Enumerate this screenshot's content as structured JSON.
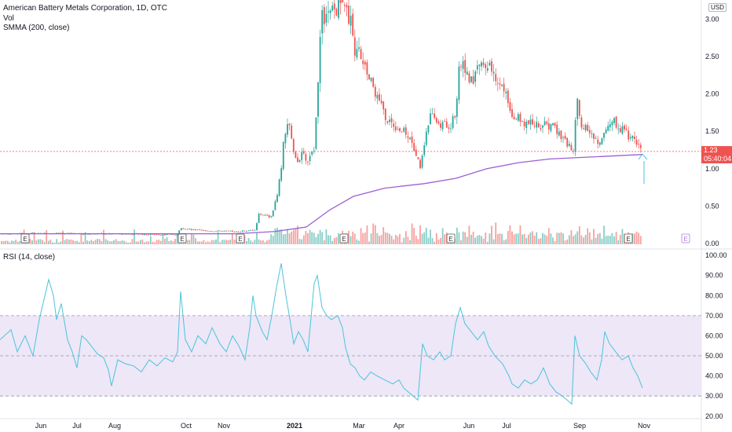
{
  "header": {
    "symbol_line": "American Battery Metals Corporation, 1D, OTC",
    "volume_label": "Vol",
    "smma_label": "SMMA (200, close)",
    "rsi_label": "RSI (14, close)"
  },
  "price_scale": {
    "currency": "USD"
  },
  "last_price": {
    "value": "1.23",
    "countdown": "05:40:04"
  },
  "colors": {
    "up": "#26a69a",
    "down": "#ef5350",
    "smma": "#9c5fd4",
    "rsi": "#4dc3d9",
    "rsi_band": "#ede7f8",
    "earnings_future": "#b47cd6"
  },
  "earnings_marker": "E",
  "chart_data": [
    {
      "type": "candlestick",
      "name": "price",
      "x_ticks": [
        "Jun",
        "Jul",
        "Aug",
        "Oct",
        "Nov",
        "2021",
        "Mar",
        "Apr",
        "Jun",
        "Jul",
        "Sep",
        "Nov"
      ],
      "y_ticks": [
        "3.00",
        "2.50",
        "2.00",
        "1.50",
        "1.00",
        "0.50",
        "0.00"
      ],
      "ylim": [
        0,
        3.15
      ],
      "close_path": [
        [
          0,
          0.13
        ],
        [
          60,
          0.14
        ],
        [
          100,
          0.13
        ],
        [
          150,
          0.13
        ],
        [
          200,
          0.12
        ],
        [
          225,
          0.12
        ],
        [
          230,
          0.2
        ],
        [
          260,
          0.17
        ],
        [
          300,
          0.16
        ],
        [
          325,
          0.18
        ],
        [
          330,
          0.4
        ],
        [
          345,
          0.35
        ],
        [
          352,
          0.6
        ],
        [
          358,
          1.0
        ],
        [
          362,
          1.5
        ],
        [
          368,
          1.6
        ],
        [
          372,
          1.3
        ],
        [
          378,
          1.1
        ],
        [
          384,
          1.2
        ],
        [
          392,
          1.1
        ],
        [
          400,
          1.3
        ],
        [
          404,
          2.0
        ],
        [
          410,
          3.1
        ],
        [
          415,
          3.0
        ],
        [
          430,
          3.15
        ],
        [
          442,
          3.1
        ],
        [
          448,
          2.9
        ],
        [
          452,
          2.6
        ],
        [
          457,
          2.7
        ],
        [
          462,
          2.4
        ],
        [
          470,
          2.2
        ],
        [
          480,
          2.0
        ],
        [
          490,
          1.7
        ],
        [
          500,
          1.6
        ],
        [
          512,
          1.5
        ],
        [
          522,
          1.45
        ],
        [
          530,
          1.2
        ],
        [
          535,
          1.0
        ],
        [
          540,
          1.35
        ],
        [
          548,
          1.7
        ],
        [
          560,
          1.6
        ],
        [
          572,
          1.55
        ],
        [
          580,
          1.7
        ],
        [
          585,
          2.4
        ],
        [
          592,
          2.35
        ],
        [
          600,
          2.15
        ],
        [
          610,
          2.4
        ],
        [
          620,
          2.45
        ],
        [
          630,
          2.2
        ],
        [
          642,
          2.05
        ],
        [
          652,
          1.75
        ],
        [
          662,
          1.65
        ],
        [
          675,
          1.6
        ],
        [
          690,
          1.58
        ],
        [
          705,
          1.55
        ],
        [
          715,
          1.4
        ],
        [
          725,
          1.3
        ],
        [
          730,
          1.25
        ],
        [
          735,
          1.9
        ],
        [
          740,
          1.6
        ],
        [
          752,
          1.45
        ],
        [
          762,
          1.35
        ],
        [
          768,
          1.5
        ],
        [
          780,
          1.65
        ],
        [
          790,
          1.55
        ],
        [
          800,
          1.45
        ],
        [
          810,
          1.38
        ],
        [
          818,
          1.23
        ]
      ],
      "smma_path": [
        [
          0,
          0.13
        ],
        [
          100,
          0.13
        ],
        [
          230,
          0.13
        ],
        [
          300,
          0.13
        ],
        [
          350,
          0.16
        ],
        [
          390,
          0.22
        ],
        [
          420,
          0.45
        ],
        [
          450,
          0.63
        ],
        [
          490,
          0.74
        ],
        [
          540,
          0.8
        ],
        [
          580,
          0.87
        ],
        [
          620,
          1.0
        ],
        [
          660,
          1.08
        ],
        [
          700,
          1.13
        ],
        [
          760,
          1.16
        ],
        [
          818,
          1.19
        ]
      ]
    },
    {
      "type": "bar",
      "name": "volume",
      "note": "relative volume, up/down colored"
    },
    {
      "type": "line",
      "name": "RSI (14, close)",
      "y_ticks": [
        "100.00",
        "90.00",
        "80.00",
        "70.00",
        "60.00",
        "50.00",
        "40.00",
        "30.00",
        "20.00"
      ],
      "ylim": [
        16,
        102
      ],
      "bands": [
        70,
        50,
        30
      ],
      "values": [
        [
          0,
          58
        ],
        [
          14,
          63
        ],
        [
          22,
          52
        ],
        [
          32,
          60
        ],
        [
          42,
          50
        ],
        [
          50,
          68
        ],
        [
          56,
          78
        ],
        [
          62,
          88
        ],
        [
          68,
          80
        ],
        [
          72,
          68
        ],
        [
          78,
          76
        ],
        [
          86,
          58
        ],
        [
          92,
          52
        ],
        [
          98,
          44
        ],
        [
          104,
          60
        ],
        [
          110,
          58
        ],
        [
          118,
          54
        ],
        [
          124,
          51
        ],
        [
          132,
          49
        ],
        [
          138,
          43
        ],
        [
          142,
          35
        ],
        [
          150,
          48
        ],
        [
          160,
          46
        ],
        [
          170,
          45
        ],
        [
          180,
          42
        ],
        [
          190,
          48
        ],
        [
          200,
          45
        ],
        [
          210,
          49
        ],
        [
          220,
          47
        ],
        [
          226,
          52
        ],
        [
          230,
          82
        ],
        [
          236,
          58
        ],
        [
          244,
          52
        ],
        [
          252,
          60
        ],
        [
          262,
          56
        ],
        [
          270,
          64
        ],
        [
          280,
          56
        ],
        [
          288,
          52
        ],
        [
          296,
          60
        ],
        [
          304,
          55
        ],
        [
          312,
          48
        ],
        [
          318,
          64
        ],
        [
          322,
          80
        ],
        [
          326,
          70
        ],
        [
          334,
          62
        ],
        [
          340,
          58
        ],
        [
          346,
          70
        ],
        [
          352,
          84
        ],
        [
          358,
          96
        ],
        [
          364,
          80
        ],
        [
          370,
          66
        ],
        [
          374,
          56
        ],
        [
          380,
          62
        ],
        [
          386,
          58
        ],
        [
          392,
          52
        ],
        [
          400,
          86
        ],
        [
          404,
          90
        ],
        [
          410,
          74
        ],
        [
          416,
          70
        ],
        [
          422,
          68
        ],
        [
          430,
          70
        ],
        [
          436,
          64
        ],
        [
          440,
          54
        ],
        [
          446,
          46
        ],
        [
          452,
          44
        ],
        [
          458,
          40
        ],
        [
          464,
          38
        ],
        [
          472,
          42
        ],
        [
          480,
          40
        ],
        [
          490,
          38
        ],
        [
          500,
          36
        ],
        [
          508,
          38
        ],
        [
          514,
          34
        ],
        [
          520,
          32
        ],
        [
          526,
          30
        ],
        [
          532,
          28
        ],
        [
          538,
          56
        ],
        [
          544,
          50
        ],
        [
          552,
          48
        ],
        [
          560,
          52
        ],
        [
          566,
          48
        ],
        [
          574,
          50
        ],
        [
          580,
          66
        ],
        [
          586,
          74
        ],
        [
          592,
          66
        ],
        [
          600,
          62
        ],
        [
          608,
          58
        ],
        [
          616,
          62
        ],
        [
          622,
          55
        ],
        [
          630,
          50
        ],
        [
          640,
          46
        ],
        [
          648,
          40
        ],
        [
          652,
          36
        ],
        [
          660,
          34
        ],
        [
          668,
          38
        ],
        [
          676,
          36
        ],
        [
          684,
          38
        ],
        [
          692,
          44
        ],
        [
          700,
          36
        ],
        [
          708,
          32
        ],
        [
          716,
          30
        ],
        [
          722,
          28
        ],
        [
          728,
          26
        ],
        [
          732,
          60
        ],
        [
          738,
          50
        ],
        [
          746,
          46
        ],
        [
          752,
          42
        ],
        [
          760,
          38
        ],
        [
          766,
          48
        ],
        [
          770,
          62
        ],
        [
          776,
          56
        ],
        [
          784,
          52
        ],
        [
          792,
          48
        ],
        [
          800,
          50
        ],
        [
          806,
          44
        ],
        [
          812,
          40
        ],
        [
          818,
          34
        ]
      ]
    }
  ]
}
